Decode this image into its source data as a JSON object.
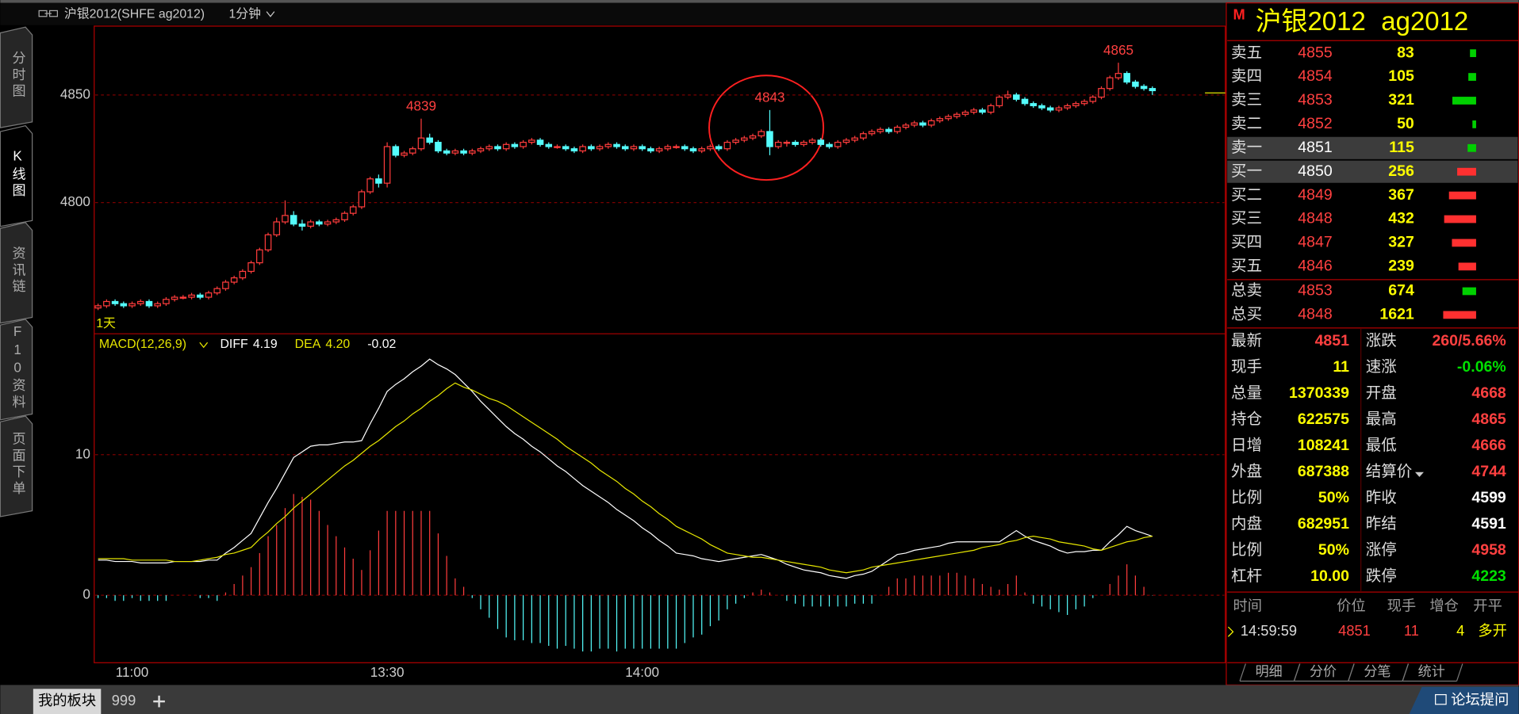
{
  "header": {
    "title": "沪银2012(SHFE ag2012)",
    "period": "1分钟"
  },
  "sidebar": [
    "分时图",
    "K线图",
    "资讯链",
    "F10资料",
    "页面下单"
  ],
  "sidebar_selected": 1,
  "kline": {
    "type": "candlestick",
    "period_label": "1天",
    "up_color": "#ff3c3c",
    "down_color": "#54fcfc",
    "grid": true,
    "ylim": [
      4739,
      4882
    ],
    "yticks": [
      4800,
      4850
    ],
    "peak_labels": [
      4839,
      4843,
      4865
    ],
    "categories": [
      null,
      null,
      null,
      null,
      "11:00",
      null,
      null,
      null,
      null,
      null,
      null,
      null,
      null,
      null,
      null,
      null,
      null,
      null,
      null,
      null,
      null,
      null,
      null,
      null,
      null,
      null,
      null,
      null,
      null,
      null,
      null,
      null,
      null,
      null,
      "13:30",
      null,
      null,
      null,
      null,
      null,
      null,
      null,
      null,
      null,
      null,
      null,
      null,
      null,
      null,
      null,
      null,
      null,
      null,
      null,
      null,
      null,
      null,
      null,
      null,
      null,
      null,
      null,
      null,
      null,
      "14:00",
      null,
      null,
      null,
      null,
      null,
      null,
      null,
      null,
      null,
      null,
      null,
      null,
      null,
      null,
      null,
      null,
      null,
      null,
      null,
      null,
      null,
      null,
      null,
      null,
      null,
      null,
      null,
      null,
      null,
      null,
      null,
      null,
      null,
      null,
      null,
      null,
      null,
      null,
      null,
      null,
      null,
      null,
      null,
      null,
      null,
      null,
      null,
      null,
      null,
      null,
      null,
      null,
      null,
      null,
      null,
      null,
      null,
      null,
      null,
      null
    ],
    "ohlc": [
      [
        4751,
        4753,
        4750,
        4752
      ],
      [
        4752,
        4755,
        4751,
        4754
      ],
      [
        4754,
        4755,
        4752,
        4753
      ],
      [
        4753,
        4754,
        4751,
        4752
      ],
      [
        4752,
        4754,
        4751,
        4753
      ],
      [
        4753,
        4755,
        4752,
        4754
      ],
      [
        4754,
        4755,
        4751,
        4752
      ],
      [
        4752,
        4754,
        4751,
        4753
      ],
      [
        4753,
        4756,
        4752,
        4755
      ],
      [
        4755,
        4757,
        4754,
        4756
      ],
      [
        4756,
        4757,
        4755,
        4756
      ],
      [
        4756,
        4758,
        4755,
        4757
      ],
      [
        4757,
        4758,
        4755,
        4756
      ],
      [
        4756,
        4759,
        4755,
        4758
      ],
      [
        4758,
        4761,
        4757,
        4760
      ],
      [
        4760,
        4764,
        4759,
        4763
      ],
      [
        4763,
        4766,
        4762,
        4765
      ],
      [
        4765,
        4769,
        4764,
        4768
      ],
      [
        4768,
        4773,
        4767,
        4772
      ],
      [
        4772,
        4779,
        4771,
        4778
      ],
      [
        4778,
        4786,
        4777,
        4785
      ],
      [
        4785,
        4793,
        4784,
        4791
      ],
      [
        4791,
        4801,
        4790,
        4794
      ],
      [
        4794,
        4796,
        4789,
        4790
      ],
      [
        4790,
        4792,
        4787,
        4789
      ],
      [
        4789,
        4792,
        4788,
        4791
      ],
      [
        4791,
        4792,
        4789,
        4790
      ],
      [
        4790,
        4792,
        4789,
        4791
      ],
      [
        4791,
        4793,
        4790,
        4792
      ],
      [
        4792,
        4796,
        4791,
        4795
      ],
      [
        4795,
        4799,
        4794,
        4798
      ],
      [
        4798,
        4806,
        4797,
        4805
      ],
      [
        4805,
        4812,
        4804,
        4811
      ],
      [
        4811,
        4813,
        4807,
        4809
      ],
      [
        4809,
        4828,
        4807,
        4826
      ],
      [
        4826,
        4827,
        4821,
        4822
      ],
      [
        4822,
        4824,
        4821,
        4823
      ],
      [
        4823,
        4826,
        4822,
        4825
      ],
      [
        4825,
        4839,
        4824,
        4830
      ],
      [
        4830,
        4832,
        4827,
        4828
      ],
      [
        4828,
        4829,
        4823,
        4824
      ],
      [
        4824,
        4825,
        4822,
        4823
      ],
      [
        4823,
        4825,
        4822,
        4824
      ],
      [
        4824,
        4825,
        4822,
        4823
      ],
      [
        4823,
        4825,
        4822,
        4824
      ],
      [
        4824,
        4826,
        4823,
        4825
      ],
      [
        4825,
        4827,
        4824,
        4826
      ],
      [
        4826,
        4827,
        4824,
        4825
      ],
      [
        4825,
        4828,
        4824,
        4827
      ],
      [
        4827,
        4828,
        4825,
        4826
      ],
      [
        4826,
        4829,
        4825,
        4828
      ],
      [
        4828,
        4830,
        4827,
        4829
      ],
      [
        4829,
        4830,
        4826,
        4827
      ],
      [
        4827,
        4828,
        4825,
        4826
      ],
      [
        4826,
        4827,
        4825,
        4826
      ],
      [
        4826,
        4827,
        4824,
        4825
      ],
      [
        4825,
        4826,
        4823,
        4824
      ],
      [
        4824,
        4827,
        4823,
        4826
      ],
      [
        4826,
        4827,
        4824,
        4825
      ],
      [
        4825,
        4827,
        4824,
        4826
      ],
      [
        4826,
        4828,
        4825,
        4827
      ],
      [
        4827,
        4828,
        4825,
        4826
      ],
      [
        4826,
        4827,
        4824,
        4825
      ],
      [
        4825,
        4827,
        4824,
        4826
      ],
      [
        4826,
        4827,
        4824,
        4825
      ],
      [
        4825,
        4826,
        4823,
        4824
      ],
      [
        4824,
        4826,
        4823,
        4825
      ],
      [
        4825,
        4827,
        4824,
        4826
      ],
      [
        4826,
        4827,
        4825,
        4826
      ],
      [
        4826,
        4827,
        4824,
        4825
      ],
      [
        4825,
        4826,
        4823,
        4824
      ],
      [
        4824,
        4826,
        4823,
        4825
      ],
      [
        4825,
        4827,
        4824,
        4826
      ],
      [
        4826,
        4827,
        4824,
        4825
      ],
      [
        4825,
        4829,
        4824,
        4828
      ],
      [
        4828,
        4830,
        4827,
        4829
      ],
      [
        4829,
        4831,
        4828,
        4830
      ],
      [
        4830,
        4832,
        4829,
        4831
      ],
      [
        4831,
        4834,
        4830,
        4833
      ],
      [
        4833,
        4843,
        4822,
        4826
      ],
      [
        4826,
        4829,
        4825,
        4828
      ],
      [
        4828,
        4829,
        4826,
        4828
      ],
      [
        4828,
        4829,
        4826,
        4827
      ],
      [
        4827,
        4829,
        4826,
        4828
      ],
      [
        4828,
        4830,
        4827,
        4829
      ],
      [
        4829,
        4830,
        4826,
        4827
      ],
      [
        4827,
        4828,
        4825,
        4826
      ],
      [
        4826,
        4829,
        4825,
        4828
      ],
      [
        4828,
        4830,
        4827,
        4829
      ],
      [
        4829,
        4831,
        4828,
        4830
      ],
      [
        4830,
        4833,
        4829,
        4832
      ],
      [
        4832,
        4834,
        4831,
        4833
      ],
      [
        4833,
        4835,
        4832,
        4834
      ],
      [
        4834,
        4835,
        4832,
        4833
      ],
      [
        4833,
        4836,
        4832,
        4835
      ],
      [
        4835,
        4837,
        4834,
        4836
      ],
      [
        4836,
        4838,
        4835,
        4837
      ],
      [
        4837,
        4838,
        4835,
        4836
      ],
      [
        4836,
        4839,
        4835,
        4838
      ],
      [
        4838,
        4840,
        4837,
        4839
      ],
      [
        4839,
        4841,
        4838,
        4840
      ],
      [
        4840,
        4842,
        4839,
        4841
      ],
      [
        4841,
        4843,
        4840,
        4842
      ],
      [
        4842,
        4844,
        4841,
        4843
      ],
      [
        4843,
        4844,
        4841,
        4842
      ],
      [
        4842,
        4846,
        4841,
        4845
      ],
      [
        4845,
        4850,
        4844,
        4849
      ],
      [
        4849,
        4852,
        4848,
        4850
      ],
      [
        4850,
        4851,
        4847,
        4848
      ],
      [
        4848,
        4849,
        4845,
        4846
      ],
      [
        4846,
        4847,
        4844,
        4845
      ],
      [
        4845,
        4846,
        4843,
        4844
      ],
      [
        4844,
        4845,
        4842,
        4843
      ],
      [
        4843,
        4845,
        4842,
        4844
      ],
      [
        4844,
        4846,
        4843,
        4845
      ],
      [
        4845,
        4847,
        4844,
        4846
      ],
      [
        4846,
        4848,
        4845,
        4847
      ],
      [
        4847,
        4850,
        4846,
        4849
      ],
      [
        4849,
        4854,
        4848,
        4853
      ],
      [
        4853,
        4859,
        4852,
        4858
      ],
      [
        4858,
        4865,
        4857,
        4860
      ],
      [
        4860,
        4861,
        4855,
        4856
      ],
      [
        4856,
        4857,
        4853,
        4854
      ],
      [
        4854,
        4855,
        4852,
        4853
      ],
      [
        4853,
        4854,
        4850,
        4852
      ]
    ]
  },
  "macd": {
    "type": "macd",
    "title": "MACD(12,26,9)",
    "readout": [
      {
        "name": "DIFF",
        "value": "4.19",
        "color": "#ffffff"
      },
      {
        "name": "DEA",
        "value": "4.20",
        "color": "#e6e600"
      },
      {
        "value": "-0.02",
        "color": "#ffffff"
      }
    ],
    "diff_color": "#ffffff",
    "dea_color": "#e6e600",
    "pos_color": "#ff3c3c",
    "neg_color": "#54fcfc",
    "ylim": [
      -4.8,
      18.6
    ],
    "yticks": [
      0,
      10
    ],
    "diff": [
      2.5,
      2.5,
      2.4,
      2.4,
      2.4,
      2.3,
      2.3,
      2.3,
      2.3,
      2.4,
      2.4,
      2.4,
      2.4,
      2.5,
      2.5,
      3.0,
      3.4,
      3.9,
      4.4,
      5.5,
      6.6,
      7.6,
      8.7,
      9.8,
      10.2,
      10.6,
      10.7,
      10.7,
      10.8,
      10.9,
      10.9,
      11.0,
      12.2,
      13.3,
      14.5,
      15.0,
      15.4,
      15.9,
      16.3,
      16.8,
      16.4,
      16.1,
      15.7,
      15.1,
      14.5,
      13.8,
      13.2,
      12.6,
      12.0,
      11.5,
      11.1,
      10.6,
      10.2,
      9.7,
      9.2,
      8.8,
      8.3,
      7.8,
      7.4,
      7.0,
      6.6,
      6.1,
      5.7,
      5.3,
      4.8,
      4.4,
      3.9,
      3.5,
      3.0,
      2.9,
      2.8,
      2.6,
      2.5,
      2.4,
      2.5,
      2.6,
      2.7,
      2.8,
      2.9,
      2.7,
      2.5,
      2.2,
      2.0,
      1.8,
      1.7,
      1.6,
      1.4,
      1.3,
      1.2,
      1.4,
      1.5,
      1.7,
      2.1,
      2.5,
      2.9,
      3.0,
      3.2,
      3.3,
      3.4,
      3.5,
      3.7,
      3.8,
      3.8,
      3.8,
      3.8,
      3.8,
      3.8,
      4.2,
      4.6,
      4.2,
      3.9,
      3.7,
      3.5,
      3.2,
      3.0,
      3.1,
      3.1,
      3.2,
      3.2,
      3.8,
      4.3,
      4.9,
      4.6,
      4.4,
      4.19
    ],
    "dea": [
      2.6,
      2.6,
      2.6,
      2.6,
      2.5,
      2.5,
      2.5,
      2.5,
      2.5,
      2.4,
      2.4,
      2.4,
      2.5,
      2.6,
      2.7,
      2.9,
      3.0,
      3.2,
      3.4,
      4.0,
      4.5,
      5.1,
      5.6,
      6.2,
      6.7,
      7.2,
      7.7,
      8.2,
      8.7,
      9.2,
      9.6,
      10.1,
      10.6,
      11.0,
      11.5,
      12.0,
      12.4,
      12.9,
      13.3,
      13.8,
      14.2,
      14.7,
      15.1,
      14.8,
      14.6,
      14.3,
      14.0,
      13.8,
      13.5,
      13.1,
      12.7,
      12.3,
      11.9,
      11.5,
      11.1,
      10.6,
      10.2,
      9.8,
      9.4,
      8.9,
      8.5,
      8.1,
      7.6,
      7.2,
      6.7,
      6.3,
      5.8,
      5.4,
      4.9,
      4.6,
      4.3,
      4.0,
      3.6,
      3.3,
      3.0,
      2.9,
      2.8,
      2.7,
      2.7,
      2.6,
      2.5,
      2.4,
      2.3,
      2.2,
      2.1,
      2.0,
      1.8,
      1.7,
      1.6,
      1.7,
      1.8,
      2.0,
      2.1,
      2.2,
      2.3,
      2.4,
      2.5,
      2.6,
      2.7,
      2.8,
      2.9,
      3.0,
      3.1,
      3.2,
      3.4,
      3.5,
      3.6,
      3.8,
      3.9,
      4.1,
      4.2,
      4.1,
      4.0,
      3.8,
      3.7,
      3.6,
      3.5,
      3.3,
      3.2,
      3.4,
      3.6,
      3.8,
      3.9,
      4.1,
      4.2
    ],
    "hist": [
      -0.2,
      -0.2,
      -0.4,
      -0.4,
      -0.2,
      -0.4,
      -0.4,
      -0.4,
      -0.4,
      0,
      0,
      0,
      -0.2,
      -0.2,
      -0.4,
      0.2,
      0.8,
      1.4,
      2.0,
      3.0,
      4.2,
      5.0,
      6.2,
      7.2,
      7.0,
      6.8,
      6.0,
      5.0,
      4.2,
      3.4,
      2.6,
      1.8,
      3.2,
      4.6,
      6.0,
      6.0,
      6.0,
      6.0,
      6.0,
      6.0,
      4.4,
      2.8,
      1.2,
      0.6,
      -0.2,
      -1.0,
      -1.6,
      -2.4,
      -3.0,
      -3.2,
      -3.2,
      -3.4,
      -3.4,
      -3.6,
      -3.8,
      -3.6,
      -3.8,
      -4.0,
      -4.0,
      -3.8,
      -3.8,
      -4.0,
      -3.8,
      -3.8,
      -3.8,
      -3.8,
      -3.8,
      -3.8,
      -3.8,
      -3.4,
      -3.0,
      -2.8,
      -2.2,
      -1.8,
      -1.0,
      -0.6,
      -0.2,
      0.2,
      0.4,
      0.2,
      0,
      -0.4,
      -0.6,
      -0.8,
      -0.8,
      -0.8,
      -0.8,
      -0.8,
      -0.8,
      -0.6,
      -0.6,
      -0.6,
      0,
      0.6,
      1.2,
      1.2,
      1.4,
      1.4,
      1.4,
      1.4,
      1.6,
      1.6,
      1.4,
      1.2,
      0.8,
      0.6,
      0.4,
      0.8,
      1.4,
      0.2,
      -0.6,
      -0.8,
      -1.0,
      -1.2,
      -1.4,
      -1.0,
      -0.8,
      -0.2,
      0,
      0.8,
      1.4,
      2.2,
      1.4,
      0.6,
      -0.02
    ]
  },
  "quote": {
    "market": "M",
    "symbol": "沪银2012",
    "code": "ag2012",
    "book": [
      {
        "label": "卖五",
        "price": 4855,
        "volume": 83,
        "color": "#00d000"
      },
      {
        "label": "卖四",
        "price": 4854,
        "volume": 105,
        "color": "#00d000"
      },
      {
        "label": "卖三",
        "price": 4853,
        "volume": 321,
        "color": "#00d000"
      },
      {
        "label": "卖二",
        "price": 4852,
        "volume": 50,
        "color": "#00d000"
      },
      {
        "label": "卖一",
        "price": 4851,
        "volume": 115,
        "color": "#00d000",
        "highlight": true
      },
      {
        "label": "买一",
        "price": 4850,
        "volume": 256,
        "color": "#ff3030",
        "highlight": true
      },
      {
        "label": "买二",
        "price": 4849,
        "volume": 367,
        "color": "#ff3030"
      },
      {
        "label": "买三",
        "price": 4848,
        "volume": 432,
        "color": "#ff3030"
      },
      {
        "label": "买四",
        "price": 4847,
        "volume": 327,
        "color": "#ff3030"
      },
      {
        "label": "买五",
        "price": 4846,
        "volume": 239,
        "color": "#ff3030"
      }
    ],
    "totals": [
      {
        "label": "总卖",
        "price": 4853,
        "volume": 674,
        "color": "#00d000"
      },
      {
        "label": "总买",
        "price": 4848,
        "volume": 1621,
        "color": "#ff3030"
      }
    ],
    "stats_left": [
      {
        "label": "最新",
        "value": "4851",
        "color": "#ff4040"
      },
      {
        "label": "现手",
        "value": "11",
        "color": "#ffff00"
      },
      {
        "label": "总量",
        "value": "1370339",
        "color": "#ffff00"
      },
      {
        "label": "持仓",
        "value": "622575",
        "color": "#ffff00"
      },
      {
        "label": "日增",
        "value": "108241",
        "color": "#ffff00"
      },
      {
        "label": "外盘",
        "value": "687388",
        "color": "#ffff00"
      },
      {
        "label": "比例",
        "value": "50%",
        "color": "#ffff00"
      },
      {
        "label": "内盘",
        "value": "682951",
        "color": "#ffff00"
      },
      {
        "label": "比例",
        "value": "50%",
        "color": "#ffff00"
      },
      {
        "label": "杠杆",
        "value": "10.00",
        "color": "#ffff00"
      }
    ],
    "stats_right": [
      {
        "label": "涨跌",
        "value": "260/5.66%",
        "color": "#ff4040"
      },
      {
        "label": "速涨",
        "value": "-0.06%",
        "color": "#00e000"
      },
      {
        "label": "开盘",
        "value": "4668",
        "color": "#ff4040"
      },
      {
        "label": "最高",
        "value": "4865",
        "color": "#ff4040"
      },
      {
        "label": "最低",
        "value": "4666",
        "color": "#ff4040"
      },
      {
        "label": "结算价",
        "value": "4744",
        "color": "#ff4040"
      },
      {
        "label": "昨收",
        "value": "4599",
        "color": "#ffffff"
      },
      {
        "label": "昨结",
        "value": "4591",
        "color": "#ffffff"
      },
      {
        "label": "涨停",
        "value": "4958",
        "color": "#ff4040"
      },
      {
        "label": "跌停",
        "value": "4223",
        "color": "#00e000"
      }
    ],
    "ticks": {
      "columns": [
        "时间",
        "价位",
        "现手",
        "增仓",
        "开平"
      ],
      "rows": [
        [
          "14:59:59",
          "4851",
          "11",
          "4",
          "多开"
        ]
      ],
      "colors": [
        "#dddddd",
        "#ff4040",
        "#ff4040",
        "#ffff00",
        "#ffff00"
      ]
    },
    "tabs": [
      "明细",
      "分价",
      "分笔",
      "统计"
    ]
  },
  "status": {
    "board": "我的板块",
    "code": "999",
    "forum": "论坛提问"
  }
}
